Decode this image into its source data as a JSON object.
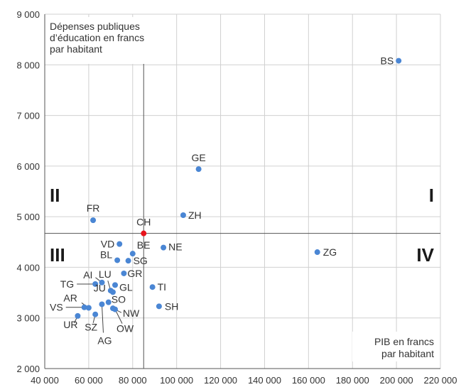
{
  "chart_data": {
    "type": "scatter",
    "xlim": [
      40000,
      220000
    ],
    "ylim": [
      2000,
      9000
    ],
    "x_ticks": [
      40000,
      60000,
      80000,
      100000,
      120000,
      140000,
      160000,
      180000,
      200000,
      220000
    ],
    "y_ticks": [
      2000,
      3000,
      4000,
      5000,
      6000,
      7000,
      8000,
      9000
    ],
    "x_tick_labels": [
      "40 000",
      "60 000",
      "80 000",
      "100 000",
      "120 000",
      "140 000",
      "160 000",
      "180 000",
      "200 000",
      "220 000"
    ],
    "y_tick_labels": [
      "2 000",
      "3 000",
      "4 000",
      "5 000",
      "6 000",
      "7 000",
      "8 000",
      "9 000"
    ],
    "grid": true,
    "y_annotation": [
      "Dépenses publiques",
      "d’éducation en francs",
      "par habitant"
    ],
    "x_annotation": [
      "PIB en francs",
      "par habitant"
    ],
    "reference": {
      "x": 85000,
      "y": 4670
    },
    "quadrant_labels": [
      "I",
      "II",
      "III",
      "IV"
    ],
    "colors": {
      "point": "#4a86d4",
      "highlight": "#e8141c",
      "grid": "#d0d0d0",
      "axis": "#555555"
    },
    "points": [
      {
        "label": "BS",
        "x": 201000,
        "y": 8080
      },
      {
        "label": "GE",
        "x": 110000,
        "y": 5940
      },
      {
        "label": "ZH",
        "x": 103000,
        "y": 5030
      },
      {
        "label": "FR",
        "x": 62000,
        "y": 4930
      },
      {
        "label": "CH",
        "x": 85000,
        "y": 4670,
        "highlight": true
      },
      {
        "label": "VD",
        "x": 74000,
        "y": 4460
      },
      {
        "label": "NE",
        "x": 94000,
        "y": 4390
      },
      {
        "label": "ZG",
        "x": 164000,
        "y": 4300
      },
      {
        "label": "BE",
        "x": 80000,
        "y": 4270
      },
      {
        "label": "BL",
        "x": 73000,
        "y": 4140
      },
      {
        "label": "SG",
        "x": 78000,
        "y": 4130
      },
      {
        "label": "GR",
        "x": 76000,
        "y": 3880
      },
      {
        "label": "AI",
        "x": 66000,
        "y": 3700
      },
      {
        "label": "TG",
        "x": 63000,
        "y": 3670
      },
      {
        "label": "GL",
        "x": 72000,
        "y": 3650
      },
      {
        "label": "TI",
        "x": 89000,
        "y": 3610
      },
      {
        "label": "LU",
        "x": 70000,
        "y": 3540
      },
      {
        "label": "JU",
        "x": 71000,
        "y": 3510
      },
      {
        "label": "SO",
        "x": 69000,
        "y": 3310
      },
      {
        "label": "AG",
        "x": 66000,
        "y": 3270
      },
      {
        "label": "SH",
        "x": 92000,
        "y": 3230
      },
      {
        "label": "VS",
        "x": 58000,
        "y": 3210
      },
      {
        "label": "AR",
        "x": 60000,
        "y": 3200
      },
      {
        "label": "NW",
        "x": 71000,
        "y": 3190
      },
      {
        "label": "OW",
        "x": 72000,
        "y": 3170
      },
      {
        "label": "SZ",
        "x": 63000,
        "y": 3070
      },
      {
        "label": "UR",
        "x": 55000,
        "y": 3040
      }
    ]
  }
}
